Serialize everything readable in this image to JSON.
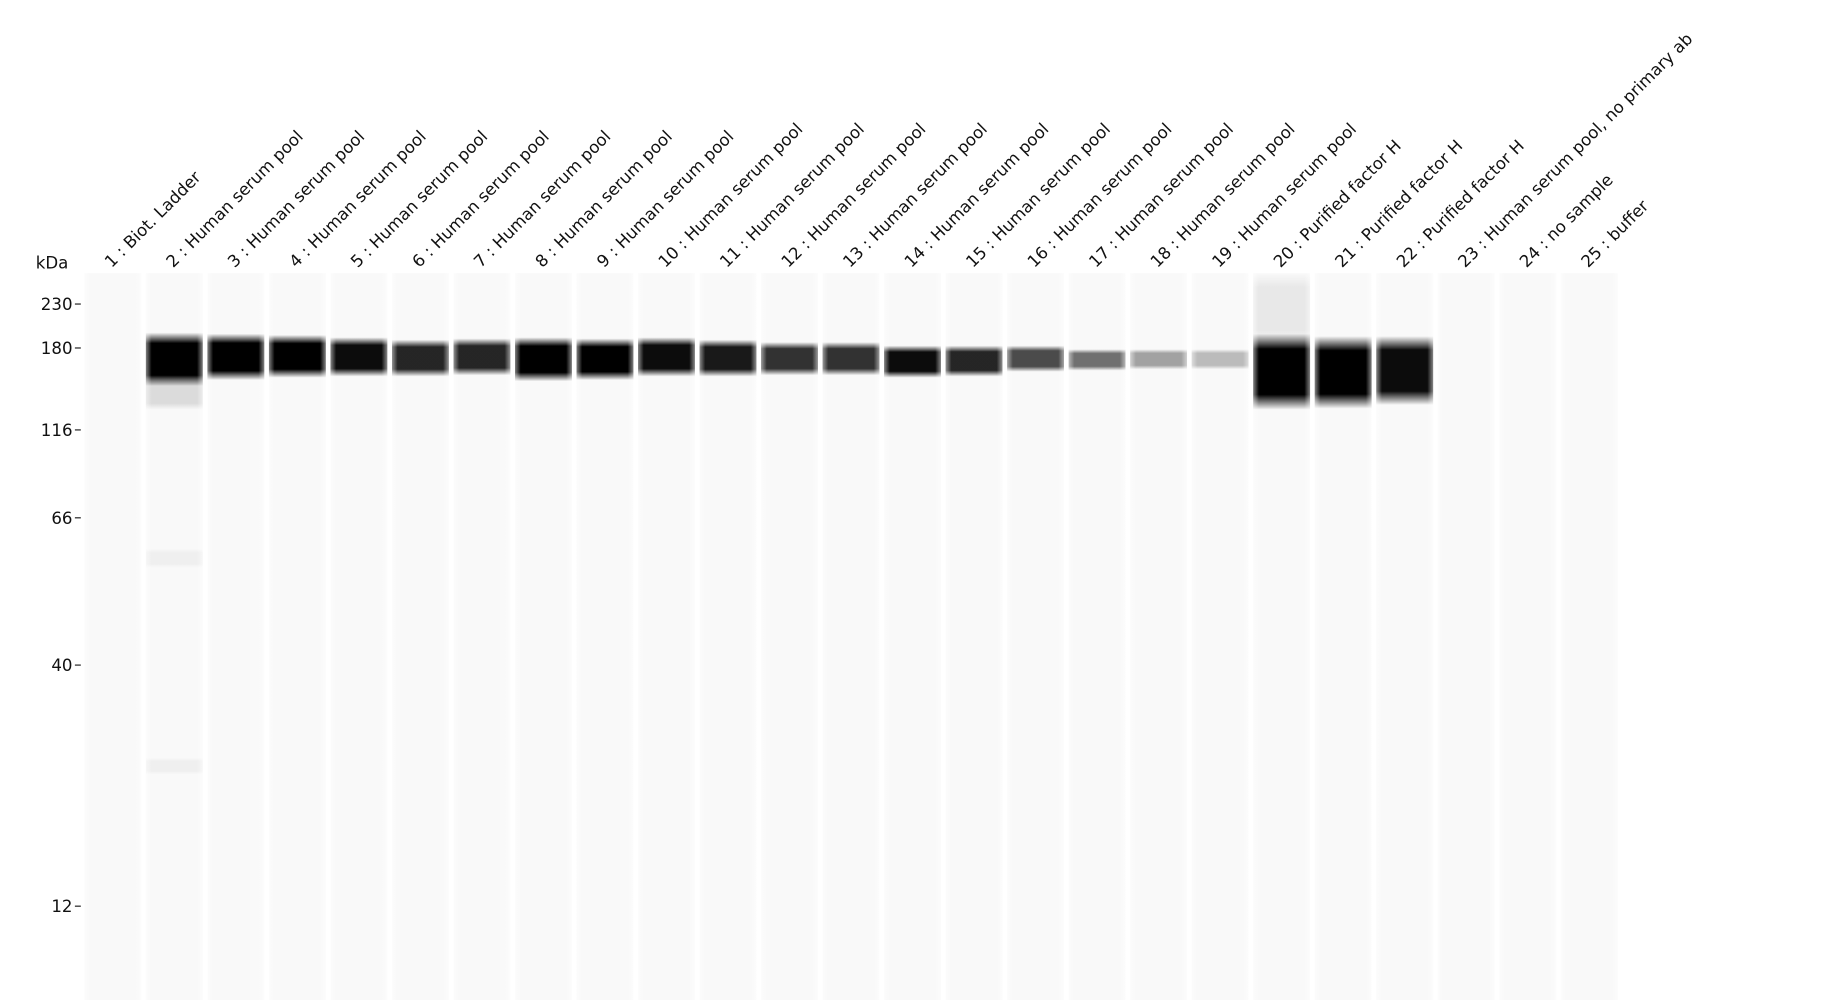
{
  "axis_label": "kDa",
  "ticks": [
    230,
    180,
    116,
    66,
    40,
    12
  ],
  "lanes": [
    "1 : Biot. Ladder",
    "2 : Human serum pool",
    "3 : Human serum pool",
    "4 : Human serum pool",
    "5 : Human serum pool",
    "6 : Human serum pool",
    "7 : Human serum pool",
    "8 : Human serum pool",
    "9 : Human serum pool",
    "10 : Human serum pool",
    "11 : Human serum pool",
    "12 : Human serum pool",
    "13 : Human serum pool",
    "14 : Human serum pool",
    "15 : Human serum pool",
    "16 : Human serum pool",
    "17 : Human serum pool",
    "18 : Human serum pool",
    "19 : Human serum pool",
    "20 : Purified factor H",
    "21 : Purified factor H",
    "22 : Purified factor H",
    "23 : Human serum pool, no primary ab",
    "24 : no sample",
    "25 : buffer"
  ]
}
